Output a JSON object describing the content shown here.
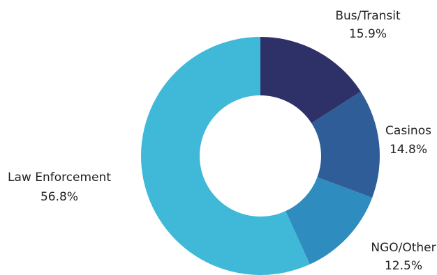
{
  "chart_data": {
    "type": "pie",
    "donut": true,
    "title": "",
    "slices": [
      {
        "label": "Bus/Transit",
        "value_text": "15.9%",
        "value": 15.9,
        "color": "#2e3168"
      },
      {
        "label": "Casinos",
        "value_text": "14.8%",
        "value": 14.8,
        "color": "#2e5d98"
      },
      {
        "label": "NGO/Other",
        "value_text": "12.5%",
        "value": 12.5,
        "color": "#2e8cbe"
      },
      {
        "label": "Law Enforcement",
        "value_text": "56.8%",
        "value": 56.8,
        "color": "#40b9d8"
      }
    ]
  }
}
